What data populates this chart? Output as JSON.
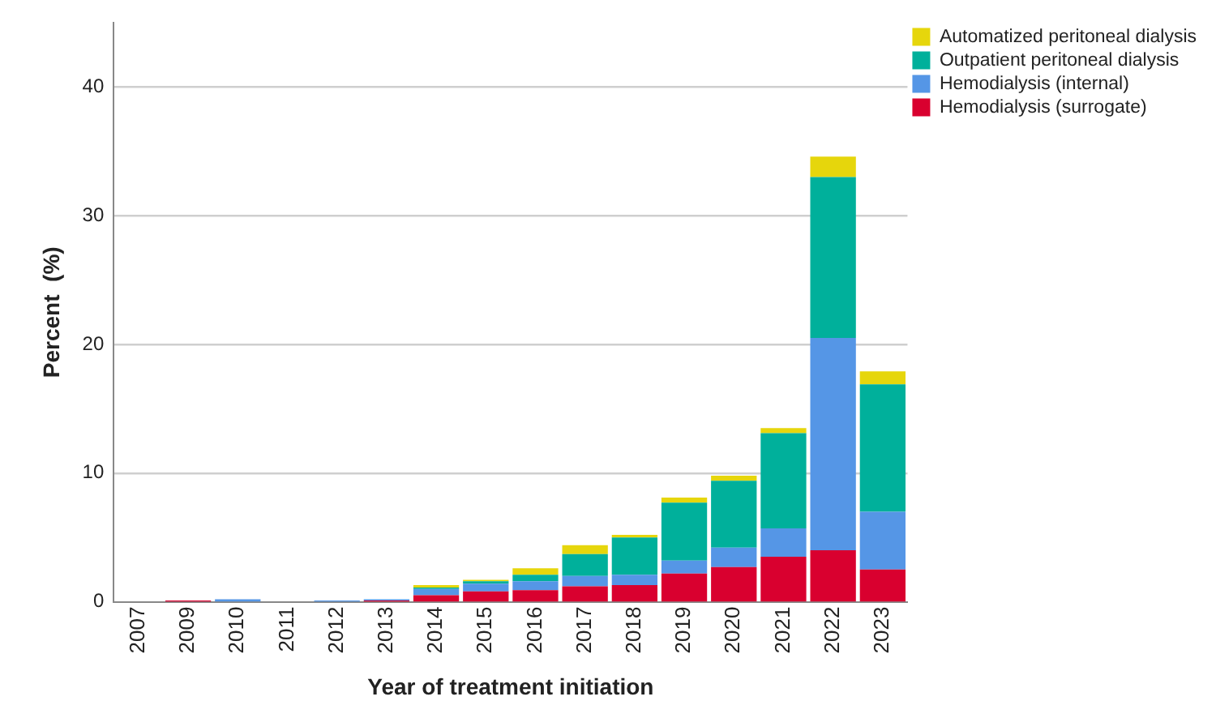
{
  "chart_data": {
    "type": "bar",
    "stacked": true,
    "xlabel": "Year of treatment initiation",
    "ylabel": "Percent  (%)",
    "categories": [
      "2007",
      "2009",
      "2010",
      "2011",
      "2012",
      "2013",
      "2014",
      "2015",
      "2016",
      "2017",
      "2018",
      "2019",
      "2020",
      "2021",
      "2022",
      "2023"
    ],
    "series": [
      {
        "name": "Hemodialysis (surrogate)",
        "color": "#d9002f",
        "values": [
          0,
          0.1,
          0,
          0,
          0,
          0.1,
          0.5,
          0.8,
          0.9,
          1.2,
          1.3,
          2.2,
          2.7,
          3.5,
          4.0,
          2.5
        ]
      },
      {
        "name": "Hemodialysis (internal)",
        "color": "#5596e6",
        "values": [
          0,
          0,
          0.2,
          0,
          0.1,
          0.1,
          0.5,
          0.6,
          0.7,
          0.8,
          0.8,
          1.0,
          1.5,
          2.2,
          16.5,
          4.5
        ]
      },
      {
        "name": "Outpatient peritoneal dialysis",
        "color": "#00b09b",
        "values": [
          0,
          0,
          0,
          0,
          0,
          0,
          0.1,
          0.2,
          0.5,
          1.7,
          2.9,
          4.5,
          5.2,
          7.4,
          12.5,
          9.9
        ]
      },
      {
        "name": "Automatized peritoneal dialysis",
        "color": "#e6d60c",
        "values": [
          0,
          0,
          0,
          0,
          0,
          0,
          0.2,
          0.1,
          0.5,
          0.7,
          0.2,
          0.4,
          0.4,
          0.4,
          1.6,
          1.0
        ]
      }
    ],
    "ylim": [
      0,
      45
    ],
    "yticks": [
      0,
      10,
      20,
      30,
      40
    ],
    "grid": "y",
    "legend": "top right"
  }
}
